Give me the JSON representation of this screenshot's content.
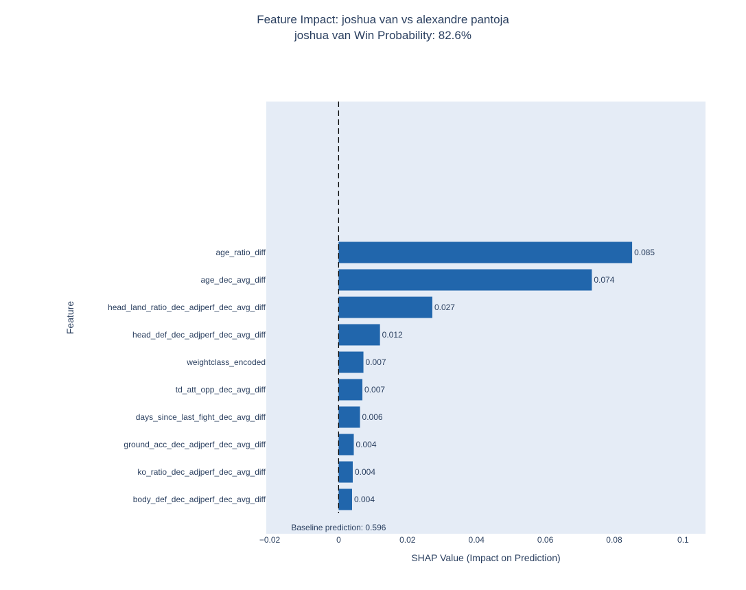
{
  "chart_data": {
    "type": "bar",
    "orientation": "horizontal",
    "title": "Feature Impact: joshua van vs alexandre pantoja",
    "subtitle": "joshua van Win Probability: 82.6%",
    "xlabel": "SHAP Value (Impact on Prediction)",
    "ylabel": "Feature",
    "xlim": [
      -0.021,
      0.1065
    ],
    "xticks": [
      -0.02,
      0,
      0.02,
      0.04,
      0.06,
      0.08,
      0.1
    ],
    "xtick_labels": [
      "−0.02",
      "0",
      "0.02",
      "0.04",
      "0.06",
      "0.08",
      "0.1"
    ],
    "categories": [
      "age_ratio_diff",
      "age_dec_avg_diff",
      "head_land_ratio_dec_adjperf_dec_avg_diff",
      "head_def_dec_adjperf_dec_avg_diff",
      "weightclass_encoded",
      "td_att_opp_dec_avg_diff",
      "days_since_last_fight_dec_avg_diff",
      "ground_acc_dec_adjperf_dec_avg_diff",
      "ko_ratio_dec_adjperf_dec_avg_diff",
      "body_def_dec_adjperf_dec_avg_diff"
    ],
    "values": [
      0.0852,
      0.0735,
      0.0272,
      0.012,
      0.0072,
      0.0069,
      0.0062,
      0.0044,
      0.0041,
      0.0039
    ],
    "value_labels": [
      "0.085",
      "0.074",
      "0.027",
      "0.012",
      "0.007",
      "0.007",
      "0.006",
      "0.004",
      "0.004",
      "0.004"
    ],
    "reference_line": {
      "x": 0,
      "style": "dashed"
    },
    "annotation": "Baseline prediction: 0.596",
    "grid": false,
    "colors": {
      "bar": "#2166ac",
      "plot_bg": "#e5ecf6",
      "text": "#2a3f5f",
      "ref_line": "#000000"
    }
  }
}
